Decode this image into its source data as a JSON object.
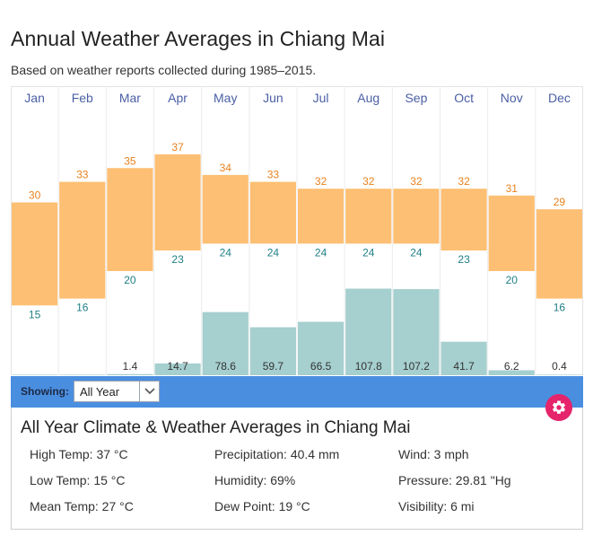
{
  "header": {
    "title": "Annual Weather Averages in Chiang Mai",
    "subtitle": "Based on weather reports collected during 1985–2015."
  },
  "colors": {
    "temp_bar": "#fdbf74",
    "precip_bar": "#a6cfcf",
    "high_label": "#e8821e",
    "low_label": "#1f7f86",
    "toolbar": "#4a8ee0",
    "gear_button": "#e5246b"
  },
  "chart_data": {
    "type": "bar",
    "categories": [
      "Jan",
      "Feb",
      "Mar",
      "Apr",
      "May",
      "Jun",
      "Jul",
      "Aug",
      "Sep",
      "Oct",
      "Nov",
      "Dec"
    ],
    "series": [
      {
        "values": [
          30,
          33,
          35,
          37,
          34,
          33,
          32,
          32,
          32,
          32,
          31,
          29
        ]
      },
      {
        "values": [
          15,
          16,
          20,
          23,
          24,
          24,
          24,
          24,
          24,
          23,
          20,
          16
        ]
      },
      {
        "values": [
          0.4,
          0.4,
          1.4,
          14.7,
          78.6,
          59.7,
          66.5,
          107.8,
          107.2,
          41.7,
          6.2,
          0.4
        ]
      }
    ],
    "data_labels": {
      "high": [
        "30",
        "33",
        "35",
        "37",
        "34",
        "33",
        "32",
        "32",
        "32",
        "32",
        "31",
        "29"
      ],
      "low": [
        "15",
        "16",
        "20",
        "23",
        "24",
        "24",
        "24",
        "24",
        "24",
        "23",
        "20",
        "16"
      ],
      "precipitation": [
        "",
        "",
        "1.4",
        "14.7",
        "78.6",
        "59.7",
        "66.5",
        "107.8",
        "107.2",
        "41.7",
        "6.2",
        "0.4"
      ]
    },
    "title": "",
    "xlabel": "",
    "ylabel": "",
    "grid": true
  },
  "toolbar": {
    "showing_label": "Showing:",
    "select_value": "All Year"
  },
  "summary": {
    "title": "All Year Climate & Weather Averages in Chiang Mai",
    "stats": [
      "High Temp: 37 °C",
      "Precipitation: 40.4 mm",
      "Wind: 3 mph",
      "Low Temp: 15 °C",
      "Humidity: 69%",
      "Pressure: 29.81 \"Hg",
      "Mean Temp: 27 °C",
      "Dew Point: 19 °C",
      "Visibility: 6 mi"
    ]
  }
}
